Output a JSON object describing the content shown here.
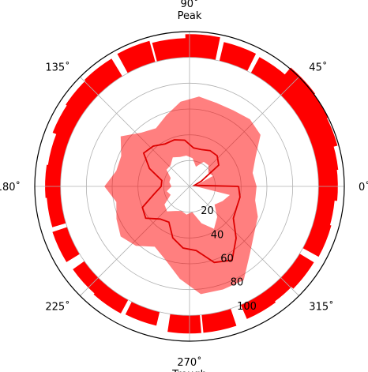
{
  "chart_data": {
    "type": "polar",
    "colors": {
      "bar": "#ff0000",
      "line": "#dd0000",
      "band": "#ff0000"
    },
    "angle_ticks": [
      {
        "deg": 0,
        "label": "0˚"
      },
      {
        "deg": 45,
        "label": "45˚"
      },
      {
        "deg": 90,
        "label": "90˚",
        "sublabel": "Peak"
      },
      {
        "deg": 135,
        "label": "135˚"
      },
      {
        "deg": 180,
        "label": "180˚"
      },
      {
        "deg": 225,
        "label": "225˚"
      },
      {
        "deg": 270,
        "label": "270˚",
        "sublabel": "Trough"
      },
      {
        "deg": 315,
        "label": "315˚"
      }
    ],
    "radial_ticks": [
      20,
      40,
      60,
      80,
      100
    ],
    "radial_range": [
      0,
      120
    ],
    "bars": {
      "width_deg": 13.2,
      "base": 100,
      "angles": [
        1,
        13,
        22,
        33,
        43,
        55,
        70,
        85,
        98,
        112,
        128,
        140,
        152,
        165,
        178,
        190,
        205,
        222,
        235,
        250,
        268,
        282,
        300,
        310,
        322,
        338,
        350
      ],
      "tops": [
        115,
        116,
        119,
        120,
        121,
        114,
        115,
        118,
        115,
        117,
        116,
        115,
        114,
        111,
        112,
        111,
        112,
        111,
        112,
        111,
        114,
        114,
        112,
        111,
        113,
        114,
        113
      ]
    },
    "line": {
      "angles": [
        0,
        12,
        24,
        36,
        48,
        60,
        72,
        84,
        96,
        108,
        120,
        132,
        144,
        156,
        168,
        180,
        192,
        204,
        216,
        228,
        240,
        252,
        264,
        276,
        288,
        300,
        312,
        324,
        336,
        348,
        360
      ],
      "values": [
        38,
        4,
        10,
        28,
        32,
        32,
        30,
        30,
        36,
        38,
        38,
        42,
        44,
        34,
        22,
        22,
        28,
        40,
        42,
        34,
        32,
        42,
        48,
        50,
        62,
        66,
        54,
        42,
        40,
        40,
        38
      ]
    },
    "band": {
      "angles": [
        0,
        12,
        24,
        36,
        48,
        60,
        72,
        84,
        96,
        108,
        120,
        132,
        144,
        156,
        168,
        180,
        192,
        204,
        216,
        228,
        240,
        252,
        264,
        276,
        288,
        300,
        312,
        324,
        336,
        348,
        360
      ],
      "lower": [
        5,
        6,
        20,
        18,
        22,
        22,
        16,
        22,
        24,
        24,
        26,
        22,
        22,
        16,
        16,
        14,
        18,
        16,
        24,
        26,
        22,
        20,
        22,
        20,
        30,
        38,
        32,
        24,
        28,
        32,
        5
      ],
      "upper": [
        52,
        50,
        56,
        68,
        70,
        68,
        68,
        70,
        66,
        58,
        52,
        56,
        66,
        58,
        58,
        66,
        58,
        62,
        66,
        62,
        54,
        60,
        72,
        84,
        84,
        84,
        70,
        62,
        58,
        52,
        52
      ]
    }
  }
}
